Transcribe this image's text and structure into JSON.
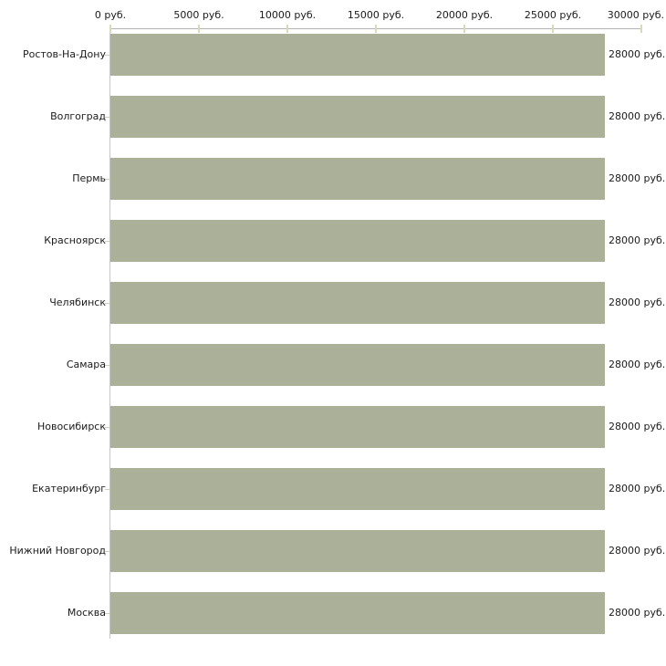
{
  "chart_data": {
    "type": "bar",
    "orientation": "horizontal",
    "title": "",
    "xlabel": "",
    "ylabel": "",
    "categories": [
      "Ростов-На-Дону",
      "Волгоград",
      "Пермь",
      "Красноярск",
      "Челябинск",
      "Самара",
      "Новосибирск",
      "Екатеринбург",
      "Нижний Новгород",
      "Москва"
    ],
    "values": [
      28000,
      28000,
      28000,
      28000,
      28000,
      28000,
      28000,
      28000,
      28000,
      28000
    ],
    "value_labels": [
      "28000 руб.",
      "28000 руб.",
      "28000 руб.",
      "28000 руб.",
      "28000 руб.",
      "28000 руб.",
      "28000 руб.",
      "28000 руб.",
      "28000 руб.",
      "28000 руб."
    ],
    "x_axis": {
      "position": "top",
      "min": 0,
      "max": 30000,
      "tick_values": [
        0,
        5000,
        10000,
        15000,
        20000,
        25000,
        30000
      ],
      "tick_labels": [
        "0 руб.",
        "5000 руб.",
        "10000 руб.",
        "15000 руб.",
        "20000 руб.",
        "25000 руб.",
        "30000 руб."
      ]
    },
    "legend": null,
    "grid": false,
    "colors": {
      "bar": "#abb199",
      "axis_tick": "#d8dbb9",
      "x_axis_line": "#b4b4b4",
      "y_axis_line": "#c6c6c6",
      "category_tick": "#ccd0ba",
      "text": "#1b1b1b",
      "background": "#ffffff"
    }
  }
}
